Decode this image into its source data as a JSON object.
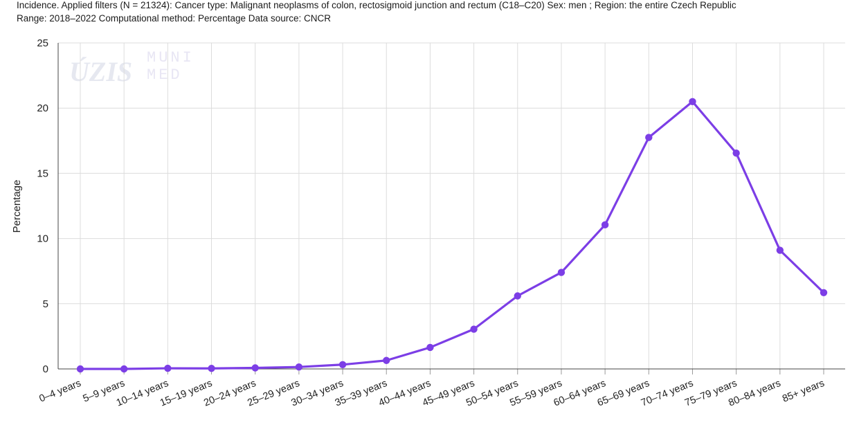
{
  "title_line1": "Incidence. Applied filters (N = 21324): Cancer type: Malignant neoplasms of colon, rectosigmoid junction and rectum (C18–C20) Sex: men ; Region: the entire Czech Republic",
  "title_line2": "Range: 2018–2022 Computational method: Percentage Data source: CNCR",
  "watermark": {
    "left": "ÚZIS",
    "right_top": "MUNI",
    "right_bottom": "MED"
  },
  "chart_data": {
    "type": "line",
    "ylabel": "Percentage",
    "ylim": [
      0,
      25
    ],
    "yticks": [
      0,
      5,
      10,
      15,
      20,
      25
    ],
    "grid": true,
    "color": "#7c3ee6",
    "categories": [
      "0–4 years",
      "5–9 years",
      "10–14 years",
      "15–19 years",
      "20–24 years",
      "25–29 years",
      "30–34 years",
      "35–39 years",
      "40–44 years",
      "45–49 years",
      "50–54 years",
      "55–59 years",
      "60–64 years",
      "65–69 years",
      "70–74 years",
      "75–79 years",
      "80–84 years",
      "85+ years"
    ],
    "values": [
      0.0,
      0.0,
      0.05,
      0.04,
      0.08,
      0.15,
      0.33,
      0.65,
      1.65,
      3.05,
      5.6,
      7.4,
      11.05,
      17.75,
      20.5,
      16.55,
      9.1,
      5.85
    ]
  }
}
